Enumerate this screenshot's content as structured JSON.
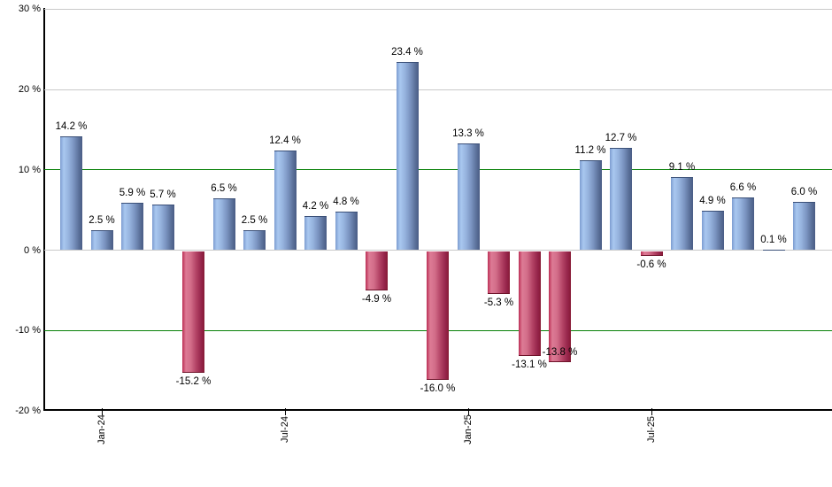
{
  "chart_data": {
    "type": "bar",
    "title": "",
    "xlabel": "",
    "ylabel": "",
    "ylim": [
      -20,
      30
    ],
    "grid": {
      "gray_lines_at": [
        30,
        20,
        0
      ],
      "green_lines_at": [
        10,
        -10
      ]
    },
    "y_axis": {
      "tick_values": [
        30,
        20,
        10,
        0,
        -10,
        -20
      ],
      "tick_labels": [
        "30 %",
        "20 %",
        "10 %",
        "0 %",
        "-10 %",
        "-20 %"
      ]
    },
    "x_axis": {
      "tick_labels": [
        "Jan-24",
        "Jul-24",
        "Jan-25",
        "Jul-25"
      ],
      "tick_bar_indices": [
        1,
        7,
        13,
        19
      ]
    },
    "values": [
      14.2,
      2.5,
      5.9,
      5.7,
      -15.2,
      6.5,
      2.5,
      12.4,
      4.2,
      4.8,
      -4.9,
      23.4,
      -16.0,
      13.3,
      -5.3,
      -13.1,
      -13.8,
      11.2,
      12.7,
      -0.6,
      9.1,
      4.9,
      6.6,
      0.1,
      6.0
    ],
    "bar_labels": [
      "14.2 %",
      "2.5 %",
      "5.9 %",
      "5.7 %",
      "-15.2 %",
      "6.5 %",
      "2.5 %",
      "12.4 %",
      "4.2 %",
      "4.8 %",
      "-4.9 %",
      "23.4 %",
      "-16.0 %",
      "13.3 %",
      "-5.3 %",
      "-13.1 %",
      "-13.8 %",
      "11.2 %",
      "12.7 %",
      "-0.6 %",
      "9.1 %",
      "4.9 %",
      "6.6 %",
      "0.1 %",
      "6.0 %"
    ],
    "colors": {
      "positive_bar_light": "#a9c8f0",
      "positive_bar_dark": "#4a5c85",
      "negative_bar_light": "#dd7b95",
      "negative_bar_dark": "#871a35",
      "green_gridline": "#098109",
      "gray_gridline": "#c9c9c9",
      "axis": "#000000",
      "label_text": "#000000"
    },
    "legend": null
  }
}
